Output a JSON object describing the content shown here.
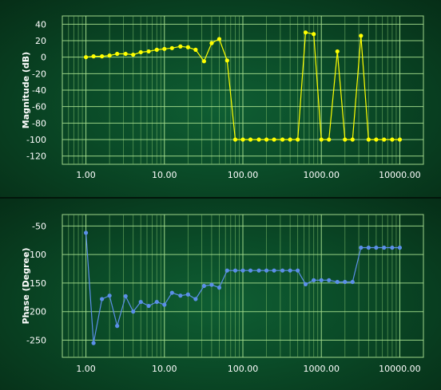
{
  "chart_data": [
    {
      "type": "line",
      "title": "",
      "xlabel": "",
      "ylabel": "Magnitude (dB)",
      "x_scale": "log",
      "xlim": [
        0.5,
        20000
      ],
      "ylim": [
        -130,
        50
      ],
      "x_ticks": [
        1,
        10,
        100,
        1000,
        10000
      ],
      "x_tick_labels": [
        "1.00",
        "10.00",
        "100.00",
        "1000.00",
        "10000.00"
      ],
      "y_ticks": [
        40,
        20,
        0,
        -20,
        -40,
        -60,
        -80,
        -100,
        -120
      ],
      "y_tick_labels": [
        "40",
        "20",
        "0",
        "-20",
        "-40",
        "-60",
        "-80",
        "-100",
        "-120"
      ],
      "grid": true,
      "series": [
        {
          "color": "#ffff00",
          "points": [
            [
              1.0,
              0
            ],
            [
              1.25,
              1
            ],
            [
              1.6,
              1
            ],
            [
              2.0,
              2
            ],
            [
              2.5,
              4
            ],
            [
              3.2,
              4
            ],
            [
              4.0,
              3
            ],
            [
              5.0,
              6
            ],
            [
              6.3,
              7
            ],
            [
              8.0,
              9
            ],
            [
              10.0,
              10
            ],
            [
              12.5,
              11
            ],
            [
              16.0,
              13
            ],
            [
              20.0,
              12
            ],
            [
              25.0,
              9
            ],
            [
              32.0,
              -5
            ],
            [
              40.0,
              17
            ],
            [
              50.0,
              22
            ],
            [
              63.0,
              -4
            ],
            [
              80.0,
              -100
            ],
            [
              100.0,
              -100
            ],
            [
              125.0,
              -100
            ],
            [
              160.0,
              -100
            ],
            [
              200.0,
              -100
            ],
            [
              250.0,
              -100
            ],
            [
              320.0,
              -100
            ],
            [
              400.0,
              -100
            ],
            [
              500.0,
              -100
            ],
            [
              630.0,
              30
            ],
            [
              800.0,
              28
            ],
            [
              1000.0,
              -100
            ],
            [
              1250.0,
              -100
            ],
            [
              1600.0,
              7
            ],
            [
              2000.0,
              -100
            ],
            [
              2500.0,
              -100
            ],
            [
              3200.0,
              26
            ],
            [
              4000.0,
              -100
            ],
            [
              5000.0,
              -100
            ],
            [
              6300.0,
              -100
            ],
            [
              8000.0,
              -100
            ],
            [
              10000.0,
              -100
            ]
          ]
        }
      ]
    },
    {
      "type": "line",
      "title": "",
      "xlabel": "",
      "ylabel": "Phase (Degree)",
      "x_scale": "log",
      "xlim": [
        0.5,
        20000
      ],
      "ylim": [
        -280,
        -30
      ],
      "x_ticks": [
        1,
        10,
        100,
        1000,
        10000
      ],
      "x_tick_labels": [
        "1.00",
        "10.00",
        "100.00",
        "1000.00",
        "10000.00"
      ],
      "y_ticks": [
        -50,
        -100,
        -150,
        -200,
        -250
      ],
      "y_tick_labels": [
        "-50",
        "-100",
        "-150",
        "-200",
        "-250"
      ],
      "grid": true,
      "series": [
        {
          "color": "#5b8fe8",
          "points": [
            [
              1.0,
              -62
            ],
            [
              1.25,
              -255
            ],
            [
              1.6,
              -178
            ],
            [
              2.0,
              -172
            ],
            [
              2.5,
              -225
            ],
            [
              3.2,
              -173
            ],
            [
              4.0,
              -200
            ],
            [
              5.0,
              -183
            ],
            [
              6.3,
              -190
            ],
            [
              8.0,
              -183
            ],
            [
              10.0,
              -188
            ],
            [
              12.5,
              -167
            ],
            [
              16.0,
              -172
            ],
            [
              20.0,
              -170
            ],
            [
              25.0,
              -178
            ],
            [
              32.0,
              -155
            ],
            [
              40.0,
              -153
            ],
            [
              50.0,
              -158
            ],
            [
              63.0,
              -128
            ],
            [
              80.0,
              -128
            ],
            [
              100.0,
              -128
            ],
            [
              125.0,
              -128
            ],
            [
              160.0,
              -128
            ],
            [
              200.0,
              -128
            ],
            [
              250.0,
              -128
            ],
            [
              320.0,
              -128
            ],
            [
              400.0,
              -128
            ],
            [
              500.0,
              -128
            ],
            [
              630.0,
              -152
            ],
            [
              800.0,
              -145
            ],
            [
              1000.0,
              -145
            ],
            [
              1250.0,
              -145
            ],
            [
              1600.0,
              -148
            ],
            [
              2000.0,
              -148
            ],
            [
              2500.0,
              -148
            ],
            [
              3200.0,
              -88
            ],
            [
              4000.0,
              -88
            ],
            [
              5000.0,
              -88
            ],
            [
              6300.0,
              -88
            ],
            [
              8000.0,
              -88
            ],
            [
              10000.0,
              -88
            ]
          ]
        }
      ]
    }
  ]
}
